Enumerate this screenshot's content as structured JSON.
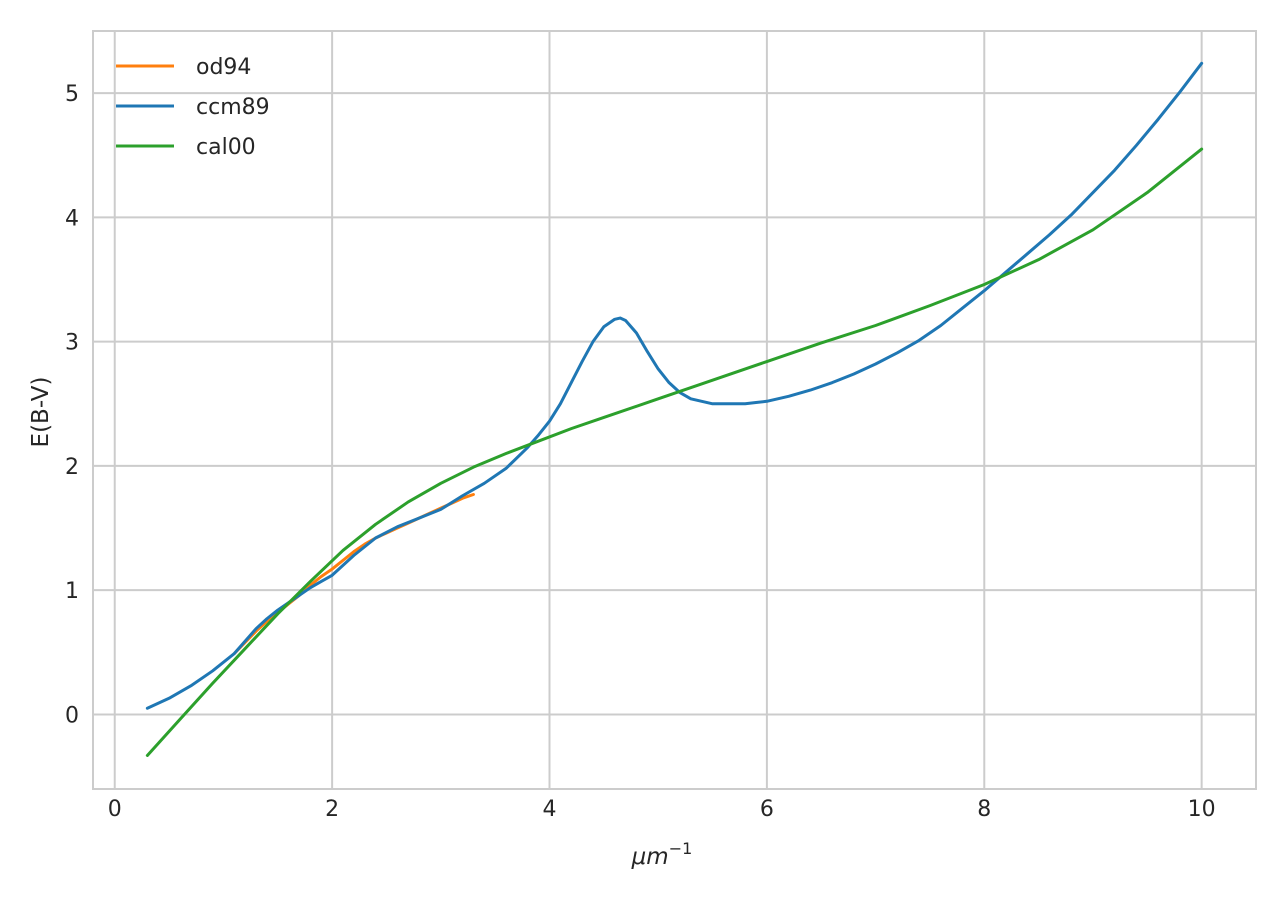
{
  "chart_data": {
    "type": "line",
    "title": "",
    "xlabel": "μm⁻¹",
    "xlabel_base": "μm",
    "xlabel_sup": "−1",
    "ylabel": "E(B-V)",
    "xlim": [
      -0.2,
      10.5
    ],
    "ylim": [
      -0.6,
      5.5
    ],
    "xticks": [
      0,
      2,
      4,
      6,
      8,
      10
    ],
    "xtick_labels": [
      "0",
      "2",
      "4",
      "6",
      "8",
      "10"
    ],
    "yticks": [
      0,
      1,
      2,
      3,
      4,
      5
    ],
    "ytick_labels": [
      "0",
      "1",
      "2",
      "3",
      "4",
      "5"
    ],
    "grid": true,
    "legend_position": "top-left",
    "series": [
      {
        "name": "od94",
        "color": "#ff7f0e",
        "x": [
          1.1,
          1.2,
          1.3,
          1.4,
          1.5,
          1.6,
          1.7,
          1.8,
          1.9,
          2.0,
          2.1,
          2.2,
          2.3,
          2.4,
          2.5,
          2.6,
          2.7,
          2.8,
          2.9,
          3.0,
          3.1,
          3.2,
          3.3
        ],
        "y": [
          0.49,
          0.58,
          0.67,
          0.75,
          0.82,
          0.89,
          0.96,
          1.04,
          1.11,
          1.17,
          1.24,
          1.31,
          1.37,
          1.42,
          1.46,
          1.5,
          1.54,
          1.58,
          1.62,
          1.66,
          1.7,
          1.74,
          1.77
        ]
      },
      {
        "name": "ccm89",
        "color": "#1f77b4",
        "x": [
          0.3,
          0.5,
          0.7,
          0.9,
          1.1,
          1.2,
          1.3,
          1.4,
          1.5,
          1.6,
          1.7,
          1.8,
          1.9,
          2.0,
          2.2,
          2.4,
          2.6,
          2.8,
          3.0,
          3.2,
          3.4,
          3.6,
          3.8,
          3.9,
          4.0,
          4.1,
          4.2,
          4.3,
          4.4,
          4.5,
          4.6,
          4.65,
          4.7,
          4.8,
          4.9,
          5.0,
          5.1,
          5.2,
          5.3,
          5.4,
          5.5,
          5.6,
          5.7,
          5.8,
          5.9,
          6.0,
          6.2,
          6.4,
          6.6,
          6.8,
          7.0,
          7.2,
          7.4,
          7.6,
          7.8,
          8.0,
          8.2,
          8.4,
          8.6,
          8.8,
          9.0,
          9.2,
          9.4,
          9.6,
          9.8,
          10.0
        ],
        "y": [
          0.05,
          0.13,
          0.23,
          0.35,
          0.49,
          0.59,
          0.69,
          0.77,
          0.84,
          0.9,
          0.96,
          1.02,
          1.07,
          1.12,
          1.28,
          1.42,
          1.51,
          1.58,
          1.65,
          1.76,
          1.86,
          1.98,
          2.15,
          2.25,
          2.36,
          2.5,
          2.67,
          2.84,
          3.0,
          3.12,
          3.18,
          3.19,
          3.17,
          3.07,
          2.92,
          2.78,
          2.67,
          2.59,
          2.54,
          2.52,
          2.5,
          2.5,
          2.5,
          2.5,
          2.51,
          2.52,
          2.56,
          2.61,
          2.67,
          2.74,
          2.82,
          2.91,
          3.01,
          3.13,
          3.27,
          3.41,
          3.56,
          3.71,
          3.86,
          4.02,
          4.2,
          4.38,
          4.58,
          4.79,
          5.01,
          5.24
        ]
      },
      {
        "name": "cal00",
        "color": "#2ca02c",
        "x": [
          0.3,
          0.6,
          0.9,
          1.2,
          1.5,
          1.8,
          2.1,
          2.4,
          2.7,
          3.0,
          3.3,
          3.6,
          3.9,
          4.2,
          4.5,
          5.0,
          5.5,
          6.0,
          6.5,
          7.0,
          7.5,
          8.0,
          8.5,
          9.0,
          9.5,
          10.0
        ],
        "y": [
          -0.33,
          -0.04,
          0.25,
          0.53,
          0.81,
          1.07,
          1.32,
          1.53,
          1.71,
          1.86,
          1.99,
          2.1,
          2.2,
          2.3,
          2.39,
          2.54,
          2.69,
          2.84,
          2.99,
          3.13,
          3.29,
          3.46,
          3.66,
          3.9,
          4.2,
          4.55
        ]
      }
    ]
  }
}
